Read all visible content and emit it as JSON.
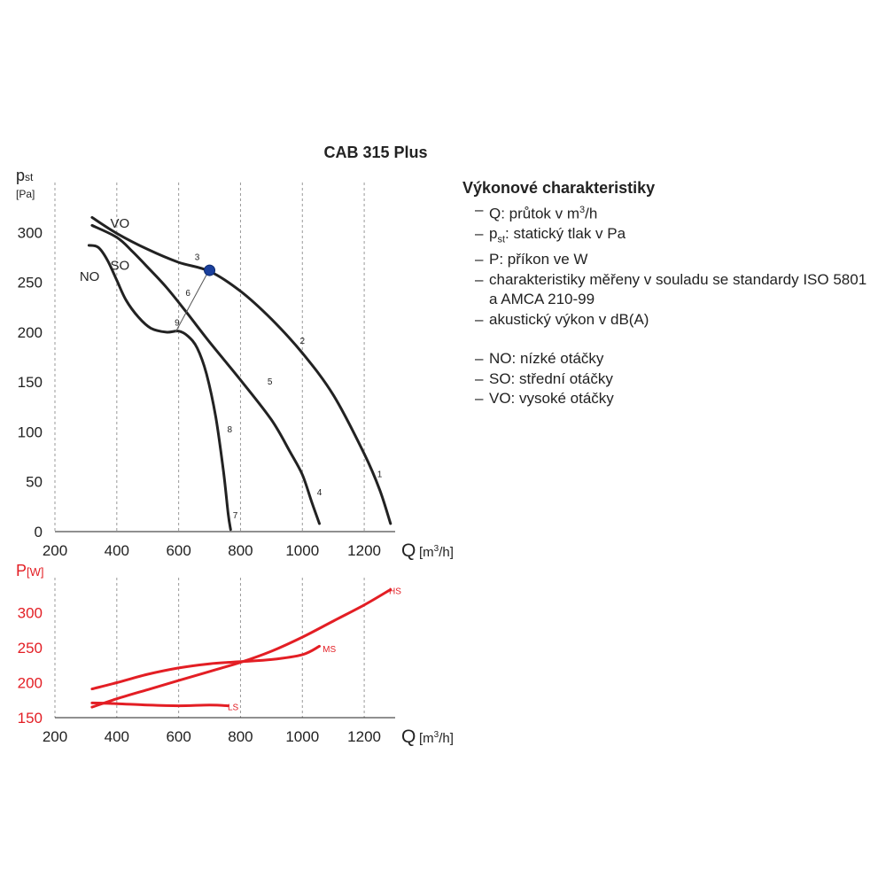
{
  "chart_data": [
    {
      "type": "line",
      "title": "CAB 315 Plus",
      "ylabel_main": "p",
      "ylabel_sub": "st",
      "ylabel_unit": "[Pa]",
      "xlabel": "Q",
      "xlabel_unit_pre": "[m",
      "xlabel_unit_sup": "3",
      "xlabel_unit_post": "/h]",
      "xlim": [
        200,
        1300
      ],
      "ylim": [
        0,
        350
      ],
      "xticks": [
        200,
        400,
        600,
        800,
        1000,
        1200
      ],
      "yticks": [
        0,
        50,
        100,
        150,
        200,
        250,
        300
      ],
      "grid": "vertical",
      "series": [
        {
          "name": "VO",
          "color": "#222222",
          "points": [
            [
              320,
              315
            ],
            [
              400,
              299
            ],
            [
              500,
              283
            ],
            [
              600,
              270
            ],
            [
              700,
              261
            ],
            [
              800,
              241
            ],
            [
              900,
              213
            ],
            [
              1000,
              179
            ],
            [
              1100,
              137
            ],
            [
              1200,
              78
            ],
            [
              1250,
              42
            ],
            [
              1285,
              8
            ]
          ]
        },
        {
          "name": "SO",
          "color": "#222222",
          "points": [
            [
              320,
              307
            ],
            [
              400,
              295
            ],
            [
              450,
              281
            ],
            [
              500,
              265
            ],
            [
              560,
              245
            ],
            [
              620,
              222
            ],
            [
              700,
              190
            ],
            [
              800,
              152
            ],
            [
              900,
              112
            ],
            [
              960,
              80
            ],
            [
              1000,
              57
            ],
            [
              1030,
              30
            ],
            [
              1055,
              8
            ]
          ]
        },
        {
          "name": "NO",
          "color": "#222222",
          "points": [
            [
              310,
              287
            ],
            [
              340,
              285
            ],
            [
              370,
              272
            ],
            [
              400,
              252
            ],
            [
              430,
              232
            ],
            [
              470,
              215
            ],
            [
              510,
              204
            ],
            [
              560,
              200
            ],
            [
              600,
              201
            ],
            [
              630,
              196
            ],
            [
              660,
              184
            ],
            [
              690,
              158
            ],
            [
              720,
              115
            ],
            [
              745,
              60
            ],
            [
              760,
              18
            ],
            [
              768,
              2
            ]
          ]
        },
        {
          "name": "",
          "color": "#555555",
          "width": 1,
          "points": [
            [
              590,
              200
            ],
            [
              700,
              263
            ]
          ]
        }
      ],
      "series_labels": [
        {
          "text": "VO",
          "x": 410,
          "y": 309
        },
        {
          "text": "SO",
          "x": 410,
          "y": 267
        },
        {
          "text": "NO",
          "x": 312,
          "y": 256
        }
      ],
      "operating_point": {
        "x": 700,
        "y": 262,
        "color": "#1a3f9c"
      },
      "curve_numbers": [
        {
          "text": "1",
          "x": 1250,
          "y": 58
        },
        {
          "text": "2",
          "x": 1000,
          "y": 192
        },
        {
          "text": "3",
          "x": 660,
          "y": 276
        },
        {
          "text": "4",
          "x": 1055,
          "y": 40
        },
        {
          "text": "5",
          "x": 895,
          "y": 151
        },
        {
          "text": "6",
          "x": 630,
          "y": 240
        },
        {
          "text": "7",
          "x": 783,
          "y": 17
        },
        {
          "text": "8",
          "x": 765,
          "y": 103
        },
        {
          "text": "9",
          "x": 595,
          "y": 210
        }
      ]
    },
    {
      "type": "line",
      "ylabel_main": "P",
      "ylabel_unit": "[W]",
      "xlabel": "Q",
      "xlabel_unit_pre": "[m",
      "xlabel_unit_sup": "3",
      "xlabel_unit_post": "/h]",
      "xlim": [
        200,
        1300
      ],
      "ylim": [
        150,
        350
      ],
      "xticks": [
        200,
        400,
        600,
        800,
        1000,
        1200
      ],
      "yticks": [
        150,
        200,
        250,
        300
      ],
      "grid": "vertical",
      "series": [
        {
          "name": "HS",
          "color": "#e31e24",
          "points": [
            [
              320,
              165
            ],
            [
              400,
              177
            ],
            [
              500,
              190
            ],
            [
              600,
              203
            ],
            [
              700,
              216
            ],
            [
              800,
              229
            ],
            [
              900,
              245
            ],
            [
              1000,
              265
            ],
            [
              1100,
              288
            ],
            [
              1200,
              311
            ],
            [
              1285,
              333
            ]
          ]
        },
        {
          "name": "MS",
          "color": "#e31e24",
          "points": [
            [
              320,
              191
            ],
            [
              400,
              200
            ],
            [
              500,
              212
            ],
            [
              600,
              221
            ],
            [
              700,
              227
            ],
            [
              800,
              230
            ],
            [
              900,
              233
            ],
            [
              1000,
              240
            ],
            [
              1055,
              252
            ]
          ]
        },
        {
          "name": "LS",
          "color": "#e31e24",
          "points": [
            [
              320,
              171
            ],
            [
              400,
              170
            ],
            [
              500,
              168
            ],
            [
              600,
              167
            ],
            [
              700,
              168
            ],
            [
              760,
              167
            ]
          ]
        }
      ],
      "series_labels": [
        {
          "text": "HS",
          "x": 1300,
          "y": 333
        },
        {
          "text": "MS",
          "x": 1087,
          "y": 250
        },
        {
          "text": "LS",
          "x": 776,
          "y": 167
        }
      ]
    }
  ],
  "legend": {
    "title": "Výkonové charakteristiky",
    "items": [
      {
        "dash": "–",
        "pre": "Q: průtok v m",
        "sup": "3",
        "post": "/h"
      },
      {
        "dash": "–",
        "pre": "p",
        "sub": "st",
        "post": ": statický tlak v Pa"
      },
      {
        "dash": "–",
        "text": "P: příkon ve W"
      },
      {
        "dash": "–",
        "text": "charakteristiky měřeny v souladu se standardy ISO 5801"
      },
      {
        "dash": "",
        "text": "a AMCA 210-99"
      },
      {
        "dash": "–",
        "text": "akustický výkon v dB(A)"
      },
      {
        "dash": "–",
        "text": "NO: nízké otáčky"
      },
      {
        "dash": "–",
        "text": "SO: střední otáčky"
      },
      {
        "dash": "–",
        "text": "VO: vysoké otáčky"
      }
    ]
  },
  "colors": {
    "axis_black": "#222222",
    "power_red": "#e31e24",
    "grid": "#999999",
    "point_blue": "#1a3f9c"
  }
}
